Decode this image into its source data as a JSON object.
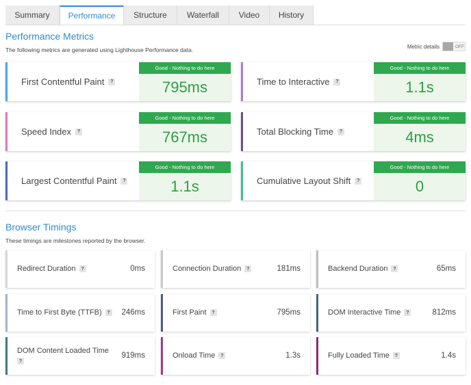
{
  "tabs": [
    {
      "label": "Summary",
      "active": false
    },
    {
      "label": "Performance",
      "active": true
    },
    {
      "label": "Structure",
      "active": false
    },
    {
      "label": "Waterfall",
      "active": false
    },
    {
      "label": "Video",
      "active": false
    },
    {
      "label": "History",
      "active": false
    }
  ],
  "performance": {
    "title": "Performance Metrics",
    "description": "The following metrics are generated using Lighthouse Performance data.",
    "metric_details_label": "Metric details",
    "toggle_text": "OFF",
    "metrics": [
      {
        "label": "First Contentful Paint",
        "badge": "?",
        "status": "Good - Nothing to do here",
        "value": "795ms",
        "color": "#4aa8d8"
      },
      {
        "label": "Time to Interactive",
        "badge": "?",
        "status": "Good - Nothing to do here",
        "value": "1.1s",
        "color": "#b07ad0"
      },
      {
        "label": "Speed Index",
        "badge": "?",
        "status": "Good - Nothing to do here",
        "value": "767ms",
        "color": "#e27bb6"
      },
      {
        "label": "Total Blocking Time",
        "badge": "?",
        "status": "Good - Nothing to do here",
        "value": "4ms",
        "color": "#6b4f8e"
      },
      {
        "label": "Largest Contentful Paint",
        "badge": "?",
        "status": "Good - Nothing to do here",
        "value": "1.1s",
        "color": "#4b6ab8"
      },
      {
        "label": "Cumulative Layout Shift",
        "badge": "?",
        "status": "Good - Nothing to do here",
        "value": "0",
        "color": "#3fbf98"
      }
    ]
  },
  "browser_timings": {
    "title": "Browser Timings",
    "description": "These timings are milestones reported by the browser.",
    "items": [
      {
        "label": "Redirect Duration",
        "badge": "?",
        "value": "0ms",
        "color": "#d7d7d7"
      },
      {
        "label": "Connection Duration",
        "badge": "?",
        "value": "181ms",
        "color": "#c9c9c9"
      },
      {
        "label": "Backend Duration",
        "badge": "?",
        "value": "65ms",
        "color": "#bdbdbd"
      },
      {
        "label": "Time to First Byte (TTFB)",
        "badge": "?",
        "value": "246ms",
        "color": "#a9b3cf"
      },
      {
        "label": "First Paint",
        "badge": "?",
        "value": "795ms",
        "color": "#4b5b8c"
      },
      {
        "label": "DOM Interactive Time",
        "badge": "?",
        "value": "812ms",
        "color": "#3e6a78"
      },
      {
        "label": "DOM Content Loaded Time",
        "badge": "?",
        "value": "919ms",
        "color": "#3f7a7a"
      },
      {
        "label": "Onload Time",
        "badge": "?",
        "value": "1.3s",
        "color": "#a33a8a"
      },
      {
        "label": "Fully Loaded Time",
        "badge": "?",
        "value": "1.4s",
        "color": "#8e2d6e"
      }
    ]
  }
}
